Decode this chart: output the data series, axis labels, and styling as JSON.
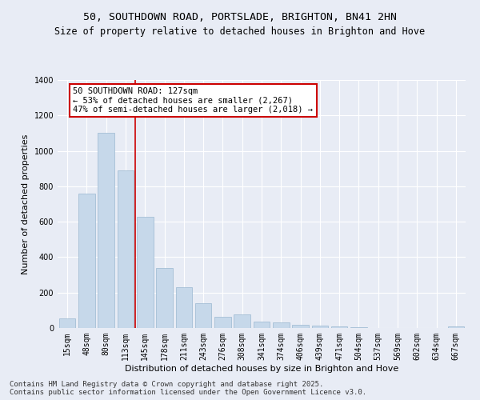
{
  "title_line1": "50, SOUTHDOWN ROAD, PORTSLADE, BRIGHTON, BN41 2HN",
  "title_line2": "Size of property relative to detached houses in Brighton and Hove",
  "xlabel": "Distribution of detached houses by size in Brighton and Hove",
  "ylabel": "Number of detached properties",
  "bar_color": "#c6d8ea",
  "bar_edge_color": "#9ab8d0",
  "background_color": "#e8ecf5",
  "grid_color": "#ffffff",
  "categories": [
    "15sqm",
    "48sqm",
    "80sqm",
    "113sqm",
    "145sqm",
    "178sqm",
    "211sqm",
    "243sqm",
    "276sqm",
    "308sqm",
    "341sqm",
    "374sqm",
    "406sqm",
    "439sqm",
    "471sqm",
    "504sqm",
    "537sqm",
    "569sqm",
    "602sqm",
    "634sqm",
    "667sqm"
  ],
  "values": [
    55,
    760,
    1100,
    890,
    630,
    340,
    230,
    140,
    65,
    75,
    35,
    30,
    20,
    12,
    8,
    5,
    1,
    0,
    0,
    0,
    8
  ],
  "ylim": [
    0,
    1400
  ],
  "yticks": [
    0,
    200,
    400,
    600,
    800,
    1000,
    1200,
    1400
  ],
  "vline_x": 3.5,
  "annotation_text": "50 SOUTHDOWN ROAD: 127sqm\n← 53% of detached houses are smaller (2,267)\n47% of semi-detached houses are larger (2,018) →",
  "annotation_box_color": "#ffffff",
  "annotation_box_edge_color": "#cc0000",
  "vline_color": "#cc0000",
  "footer_line1": "Contains HM Land Registry data © Crown copyright and database right 2025.",
  "footer_line2": "Contains public sector information licensed under the Open Government Licence v3.0.",
  "title_fontsize": 9.5,
  "subtitle_fontsize": 8.5,
  "axis_label_fontsize": 8,
  "tick_fontsize": 7,
  "annotation_fontsize": 7.5,
  "footer_fontsize": 6.5
}
